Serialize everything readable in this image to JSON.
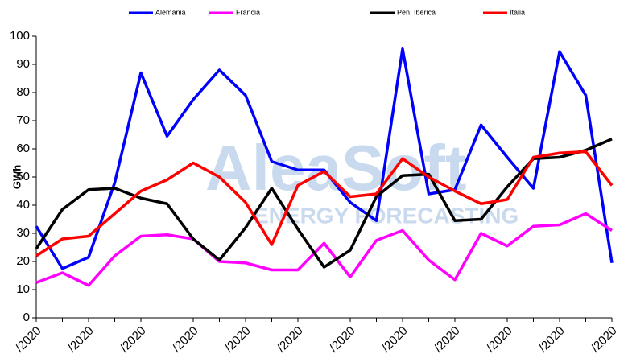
{
  "chart_data": {
    "type": "line",
    "y_label": "GWh",
    "watermark": {
      "brand": "AleaSoft",
      "tagline": "ENERGY FORECASTING"
    },
    "categories": [
      "/2020",
      null,
      "/2020",
      null,
      "/2020",
      null,
      "/2020",
      null,
      "/2020",
      null,
      "/2020",
      null,
      "/2020",
      null,
      "/2020",
      null,
      "/2020",
      null,
      "/2020",
      null,
      "/2020",
      null,
      "/2020"
    ],
    "series": [
      {
        "name": "Alemania",
        "color": "#0000ff",
        "values": [
          32.5,
          17.5,
          21.5,
          48,
          87,
          64.5,
          77.5,
          88,
          79,
          55.5,
          52.5,
          52.5,
          41,
          34.5,
          95.5,
          44,
          45.5,
          68.5,
          57,
          46,
          94.5,
          79,
          19.5
        ]
      },
      {
        "name": "Francia",
        "color": "#ff00ff",
        "values": [
          12.5,
          16,
          11.5,
          22,
          29,
          29.5,
          28,
          20,
          19.5,
          17,
          17,
          26.5,
          14.5,
          27.5,
          31,
          20.5,
          13.5,
          30,
          25.5,
          32.5,
          33,
          37,
          31
        ]
      },
      {
        "name": "Pen. Ibérica",
        "color": "#000000",
        "values": [
          24.5,
          38.5,
          45.5,
          46,
          42.5,
          40.5,
          28,
          20.5,
          32,
          46,
          31.5,
          18,
          24,
          43,
          50.5,
          51,
          34.5,
          35,
          46.5,
          56.5,
          57,
          59.5,
          63.5
        ]
      },
      {
        "name": "Italia",
        "color": "#ff0000",
        "values": [
          22,
          28,
          29,
          37,
          45,
          49,
          55,
          50,
          41,
          26,
          47,
          52,
          43,
          44,
          56.5,
          50,
          45,
          40.5,
          42,
          57,
          58.5,
          59,
          47
        ]
      }
    ],
    "ylim": [
      0,
      100
    ],
    "yticks": [
      0,
      10,
      20,
      30,
      40,
      50,
      60,
      70,
      80,
      90,
      100
    ],
    "legend": "top"
  }
}
